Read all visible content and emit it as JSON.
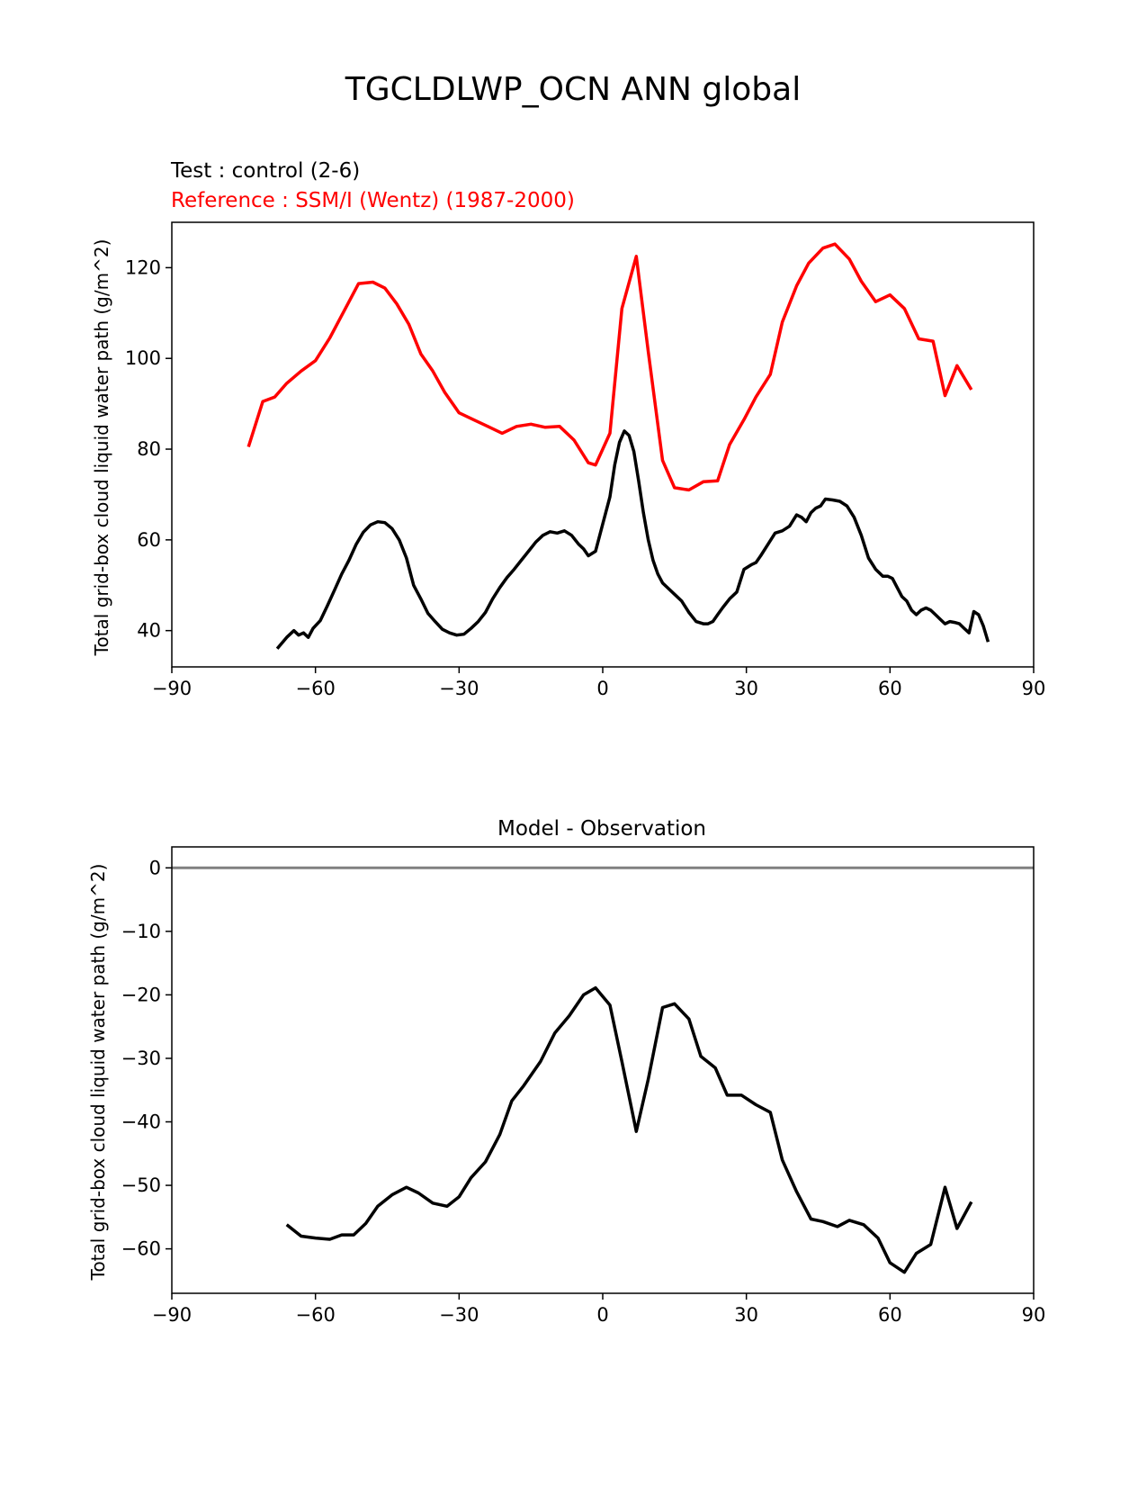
{
  "suptitle": "TGCLDLWP_OCN ANN global",
  "colors": {
    "test": "#000000",
    "reference": "#ff0000",
    "zero_line": "#808080"
  },
  "chart_data": [
    {
      "type": "line",
      "title_test": "Test : control (2-6)",
      "title_reference": "Reference : SSM/I (Wentz) (1987-2000)",
      "xlabel": "",
      "ylabel": "Total grid-box cloud liquid water path (g/m^2)",
      "xlim": [
        -90,
        90
      ],
      "ylim": [
        32,
        130
      ],
      "xticks": [
        -90,
        -60,
        -30,
        0,
        30,
        60,
        90
      ],
      "xtick_labels": [
        "−90",
        "−60",
        "−30",
        "0",
        "30",
        "60",
        "90"
      ],
      "yticks": [
        40,
        60,
        80,
        100,
        120
      ],
      "ytick_labels": [
        "40",
        "60",
        "80",
        "100",
        "120"
      ],
      "series": [
        {
          "name": "reference",
          "color": "#ff0000",
          "x": [
            -74,
            -71,
            -68.5,
            -66,
            -63,
            -60,
            -57,
            -54,
            -51,
            -48,
            -45.5,
            -43,
            -40.5,
            -38,
            -35.5,
            -33,
            -30,
            -27,
            -24,
            -21,
            -18,
            -15,
            -12,
            -9,
            -6,
            -3,
            -1.5,
            1.5,
            4,
            7,
            9.5,
            12.5,
            15,
            18,
            21,
            24,
            26.5,
            29.5,
            32,
            35,
            37.5,
            40.5,
            43,
            46,
            48.5,
            51.5,
            54,
            57,
            60,
            63,
            66,
            69,
            71.5,
            74,
            77
          ],
          "y": [
            80.5,
            90.5,
            91.5,
            94.5,
            97.2,
            99.5,
            104.5,
            110.5,
            116.5,
            116.8,
            115.5,
            112,
            107.5,
            101,
            97.2,
            92.5,
            88,
            86.5,
            85,
            83.5,
            85,
            85.5,
            84.8,
            85,
            82,
            77,
            76.5,
            83.5,
            111,
            122.5,
            101.5,
            77.5,
            71.5,
            71,
            72.8,
            73,
            81,
            86.5,
            91.5,
            96.5,
            108,
            116,
            121,
            124.3,
            125.2,
            121.9,
            117,
            112.5,
            114,
            111,
            104.3,
            103.8,
            91.8,
            98.4,
            93.1
          ]
        },
        {
          "name": "test",
          "color": "#000000",
          "x": [
            -68,
            -66,
            -64.5,
            -63.5,
            -62.5,
            -61.5,
            -60.5,
            -59,
            -57.5,
            -56,
            -54.5,
            -53,
            -51.5,
            -50,
            -48.5,
            -47,
            -45.5,
            -44,
            -42.5,
            -41,
            -39.5,
            -38,
            -36.5,
            -35,
            -33.5,
            -32,
            -30.5,
            -29,
            -27.5,
            -26,
            -24.5,
            -23,
            -21.5,
            -20,
            -18.5,
            -17,
            -15.5,
            -14,
            -12.5,
            -11,
            -9.5,
            -8,
            -6.5,
            -5,
            -4,
            -3,
            -1.5,
            0,
            1.5,
            2.5,
            3.5,
            4.5,
            5.5,
            6.5,
            7.5,
            8.5,
            9.5,
            10.5,
            11.5,
            12.5,
            13.5,
            15,
            16.5,
            18,
            19.5,
            21,
            22,
            23,
            24,
            25,
            26.5,
            28,
            29.5,
            31,
            32,
            33,
            34.5,
            36,
            37.5,
            39,
            40.5,
            41.5,
            42.5,
            43.5,
            44.5,
            45.5,
            46.5,
            48,
            49.5,
            51,
            52.5,
            54,
            55.5,
            57,
            58.5,
            59.5,
            60.5,
            61.5,
            62.5,
            63.5,
            64.5,
            65.5,
            66.5,
            67.5,
            68.5,
            69.5,
            70.5,
            71.5,
            72.5,
            73.5,
            74.5,
            75.5,
            76.5,
            77.5,
            78.5,
            79.5,
            80.5
          ],
          "y": [
            36,
            38.5,
            40,
            39,
            39.5,
            38.5,
            40.5,
            42.2,
            45.5,
            49,
            52.5,
            55.5,
            59,
            61.7,
            63.3,
            64,
            63.8,
            62.5,
            60,
            56,
            50,
            47,
            43.8,
            42,
            40.3,
            39.5,
            39,
            39.2,
            40.5,
            42,
            44,
            47,
            49.5,
            51.7,
            53.5,
            55.5,
            57.5,
            59.5,
            61,
            61.8,
            61.5,
            62,
            61,
            59,
            58,
            56.5,
            57.5,
            63.5,
            69.5,
            76.5,
            81.5,
            84,
            83,
            79.5,
            73,
            66,
            60,
            55.5,
            52.5,
            50.5,
            49.5,
            48,
            46.5,
            44,
            42,
            41.5,
            41.5,
            42,
            43.5,
            45,
            47,
            48.5,
            53.5,
            54.5,
            55,
            56.5,
            59,
            61.5,
            62,
            63,
            65.5,
            65,
            64,
            66,
            67,
            67.5,
            69,
            68.8,
            68.5,
            67.5,
            65,
            61,
            56,
            53.5,
            52,
            52,
            51.5,
            49.5,
            47.5,
            46.5,
            44.5,
            43.5,
            44.5,
            45,
            44.5,
            43.5,
            42.5,
            41.5,
            42,
            41.8,
            41.5,
            40.5,
            39.5,
            44.2,
            43.5,
            41,
            37.5
          ]
        }
      ]
    },
    {
      "type": "line",
      "title": "Model - Observation",
      "xlabel": "",
      "ylabel": "Total grid-box cloud liquid water path (g/m^2)",
      "xlim": [
        -90,
        90
      ],
      "ylim": [
        -67,
        3.3
      ],
      "xticks": [
        -90,
        -60,
        -30,
        0,
        30,
        60,
        90
      ],
      "xtick_labels": [
        "−90",
        "−60",
        "−30",
        "0",
        "30",
        "60",
        "90"
      ],
      "yticks": [
        0,
        -10,
        -20,
        -30,
        -40,
        -50,
        -60
      ],
      "ytick_labels": [
        "0",
        "−10",
        "−20",
        "−30",
        "−40",
        "−50",
        "−60"
      ],
      "zero_line": 0,
      "series": [
        {
          "name": "difference",
          "color": "#000000",
          "x": [
            -66,
            -63,
            -60,
            -57,
            -54.5,
            -52,
            -49.5,
            -47,
            -44,
            -41,
            -38.5,
            -35.5,
            -32.5,
            -30,
            -27.5,
            -24.5,
            -21.5,
            -19,
            -16.5,
            -13,
            -10,
            -7,
            -4,
            -1.5,
            1.5,
            4,
            7,
            9.5,
            12.5,
            15,
            18,
            20.5,
            23.5,
            26,
            29,
            32,
            35,
            37.5,
            40.5,
            43.5,
            46,
            49,
            51.5,
            54.5,
            57.5,
            60,
            63,
            65.5,
            68.5,
            71.5,
            74,
            77
          ],
          "y": [
            -56.2,
            -58,
            -58.3,
            -58.5,
            -57.8,
            -57.8,
            -56,
            -53.3,
            -51.5,
            -50.3,
            -51.2,
            -52.8,
            -53.3,
            -51.8,
            -48.8,
            -46.3,
            -42,
            -36.7,
            -34.3,
            -30.5,
            -26,
            -23.3,
            -20,
            -18.9,
            -21.6,
            -30.5,
            -41.5,
            -33.3,
            -22,
            -21.4,
            -23.8,
            -29.7,
            -31.5,
            -35.8,
            -35.8,
            -37.3,
            -38.5,
            -46,
            -51,
            -55.3,
            -55.7,
            -56.5,
            -55.5,
            -56.2,
            -58.3,
            -62.2,
            -63.7,
            -60.7,
            -59.3,
            -50.3,
            -56.8,
            -52.6
          ]
        }
      ]
    }
  ]
}
